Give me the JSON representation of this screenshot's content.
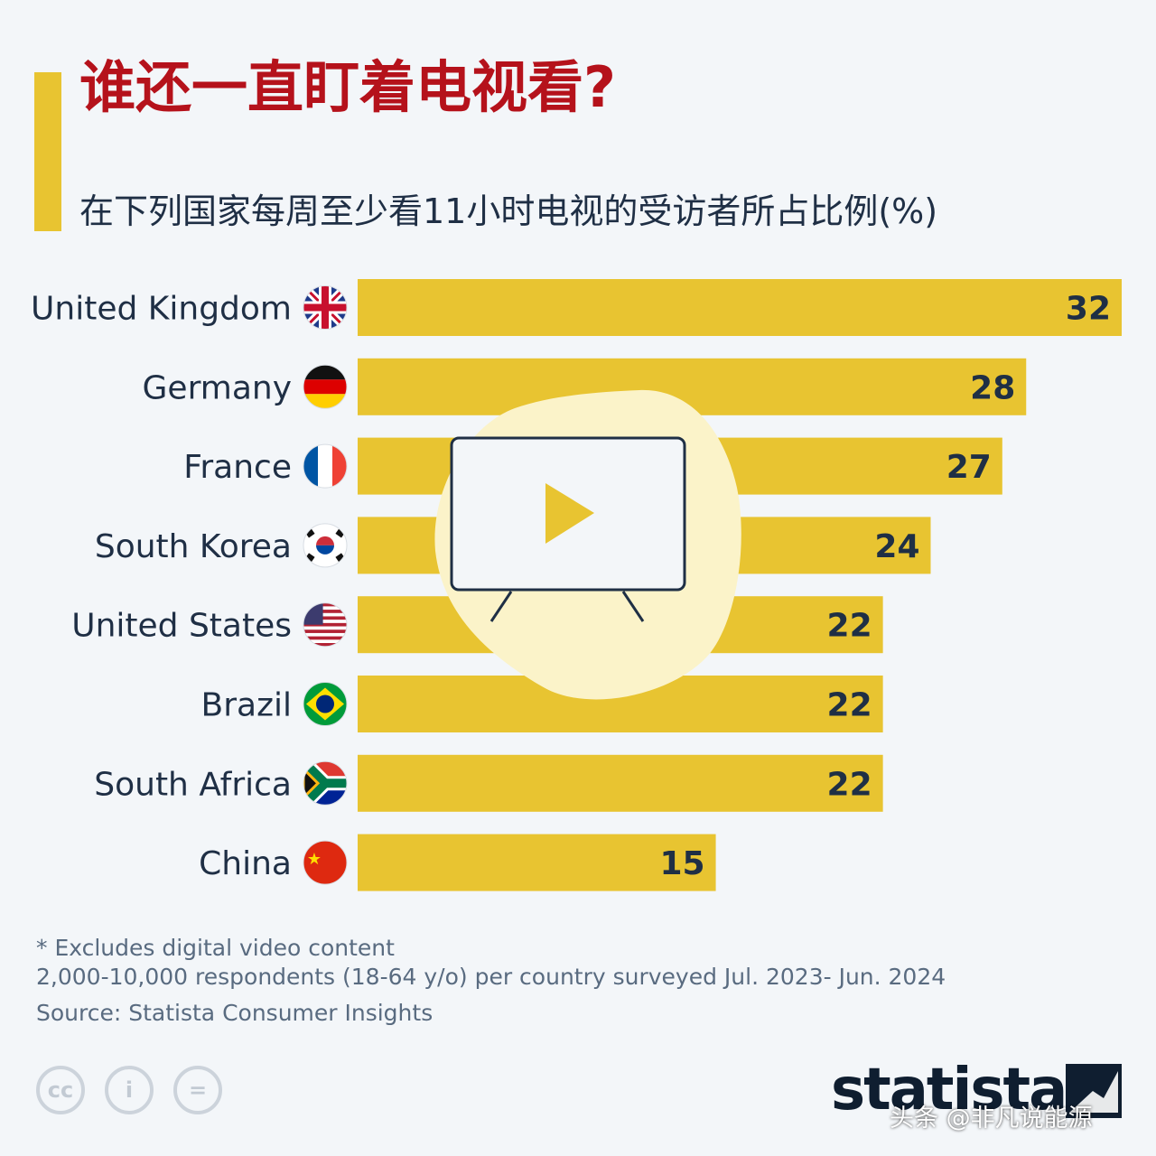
{
  "title": "谁还一直盯着电视看?",
  "subtitle": "在下列国家每周至少看11小时电视的受访者所占比例(%)",
  "colors": {
    "title": "#b5121b",
    "bar": "#e8c431",
    "accent": "#e8c431",
    "text": "#1f2f45"
  },
  "chart_data": {
    "type": "bar",
    "orientation": "horizontal",
    "categories": [
      "United Kingdom",
      "Germany",
      "France",
      "South Korea",
      "United States",
      "Brazil",
      "South Africa",
      "China"
    ],
    "values": [
      32,
      28,
      27,
      24,
      22,
      22,
      22,
      15
    ],
    "data_labels": [
      "32",
      "28",
      "27",
      "24",
      "22",
      "22",
      "22",
      "15"
    ],
    "flags": [
      "uk-flag-icon",
      "germany-flag-icon",
      "france-flag-icon",
      "south-korea-flag-icon",
      "usa-flag-icon",
      "brazil-flag-icon",
      "south-africa-flag-icon",
      "china-flag-icon"
    ],
    "xlim": [
      0,
      32
    ],
    "grid": false,
    "legend": "none"
  },
  "notes": {
    "line1": "* Excludes digital video content",
    "line2": "2,000-10,000 respondents (18-64 y/o) per country surveyed Jul. 2023- Jun. 2024",
    "source": "Source: Statista Consumer Insights"
  },
  "license_icons": [
    "cc-icon",
    "attribution-icon",
    "no-derivatives-icon"
  ],
  "license_glyphs": [
    "cc",
    "i",
    "="
  ],
  "logo": "statista",
  "watermark": "头条 @非凡说能源"
}
